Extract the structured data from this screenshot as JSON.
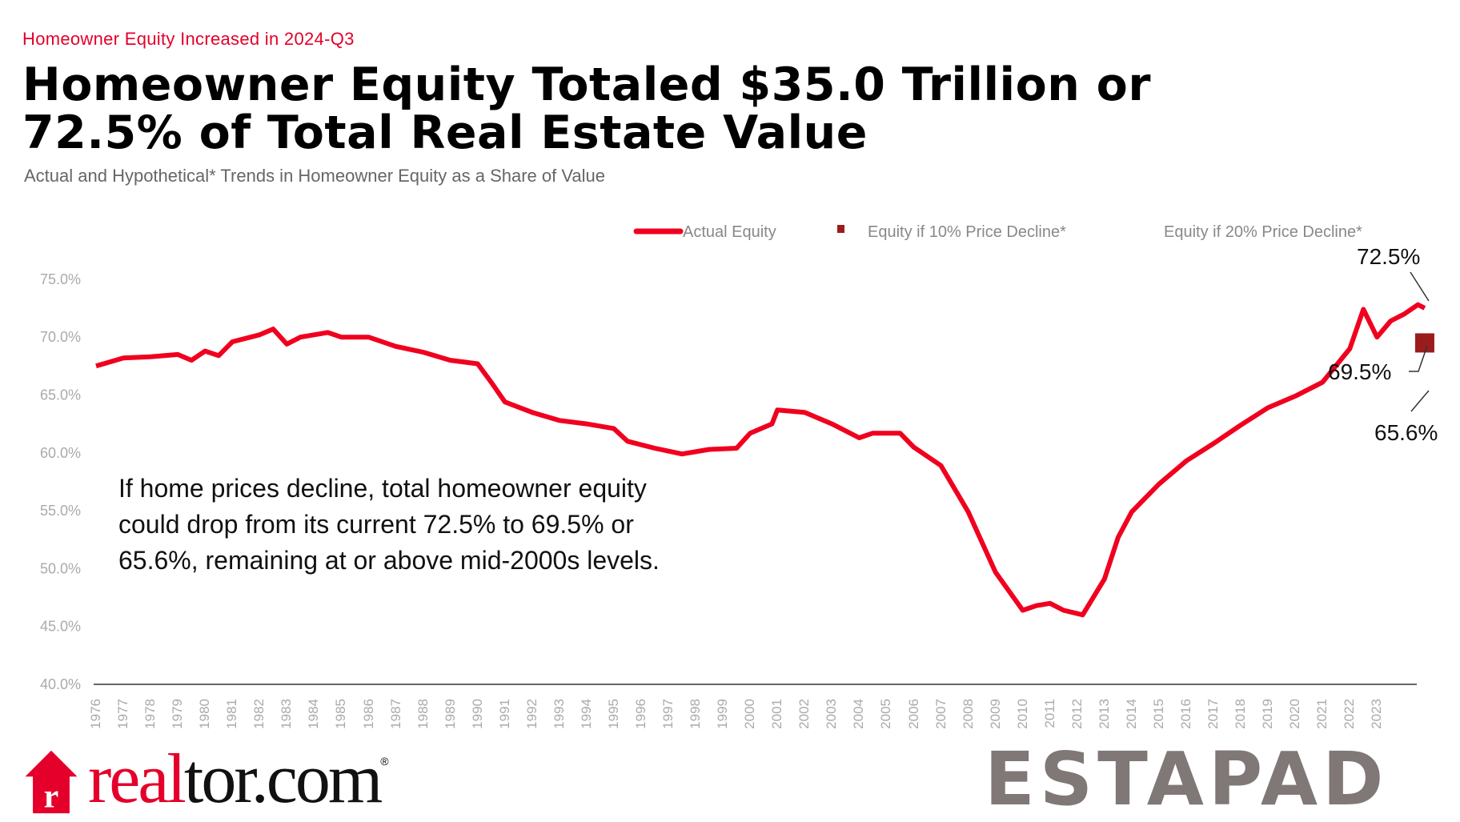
{
  "header": {
    "kicker": "Homeowner Equity Increased in 2024-Q3",
    "title_line1": "Homeowner Equity Totaled $35.0 Trillion or",
    "title_line2": "72.5% of Total Real Estate Value",
    "subtitle": "Actual and Hypothetical* Trends in Homeowner Equity as a Share of Value"
  },
  "note": "If home prices decline, total homeowner equity could drop from its current 72.5% to 69.5% or 65.6%, remaining at or above mid-2000s levels.",
  "logo": {
    "part1": "real",
    "part2": "tor.com",
    "reg": "®"
  },
  "watermark": "ESTAPAD",
  "colors": {
    "actual": "#f0001e",
    "decline10": "#9b1c1c",
    "axis": "#666666"
  },
  "chart_data": {
    "type": "line",
    "title": "Homeowner Equity Totaled $35.0 Trillion or 72.5% of Total Real Estate Value",
    "ylabel": "",
    "xlabel": "",
    "ylim": [
      40,
      75
    ],
    "yticks": [
      "40.0%",
      "45.0%",
      "50.0%",
      "55.0%",
      "60.0%",
      "65.0%",
      "70.0%",
      "75.0%"
    ],
    "ytick_values": [
      40,
      45,
      50,
      55,
      60,
      65,
      70,
      75
    ],
    "xticks": [
      "1976",
      "1977",
      "1978",
      "1979",
      "1980",
      "1981",
      "1982",
      "1983",
      "1984",
      "1985",
      "1986",
      "1987",
      "1988",
      "1989",
      "1990",
      "1991",
      "1992",
      "1993",
      "1994",
      "1995",
      "1996",
      "1997",
      "1998",
      "1999",
      "2000",
      "2001",
      "2002",
      "2003",
      "2004",
      "2005",
      "2006",
      "2007",
      "2008",
      "2009",
      "2010",
      "2011",
      "2012",
      "2013",
      "2014",
      "2015",
      "2016",
      "2017",
      "2018",
      "2019",
      "2020",
      "2021",
      "2022",
      "2023"
    ],
    "legend": [
      "Actual Equity",
      "Equity if 10% Price Decline*",
      "Equity if 20% Price Decline*"
    ],
    "legend_position": "top-right",
    "series": [
      {
        "name": "Actual Equity",
        "x": [
          1976,
          1977,
          1978,
          1979,
          1979.5,
          1980,
          1980.5,
          1981,
          1982,
          1982.5,
          1983,
          1983.5,
          1984.5,
          1985,
          1986,
          1987,
          1988,
          1989,
          1990,
          1990.5,
          1991,
          1992,
          1993,
          1994,
          1995,
          1995.5,
          1996.5,
          1997.5,
          1998.5,
          1999.5,
          2000,
          2000.8,
          2001,
          2002,
          2003,
          2004,
          2004.5,
          2005.5,
          2006,
          2007,
          2008,
          2009,
          2010,
          2010.5,
          2011,
          2011.5,
          2012.2,
          2013,
          2013.5,
          2014,
          2015,
          2016,
          2017,
          2018,
          2019,
          2020,
          2021,
          2022,
          2022.5,
          2023,
          2023.5,
          2024,
          2024.5,
          2024.75
        ],
        "y": [
          67.5,
          68.2,
          68.3,
          68.5,
          68.0,
          68.8,
          68.4,
          69.6,
          70.2,
          70.7,
          69.4,
          70.0,
          70.4,
          70.0,
          70.0,
          69.2,
          68.7,
          68.0,
          67.7,
          66.1,
          64.4,
          63.5,
          62.8,
          62.5,
          62.1,
          61.0,
          60.4,
          59.9,
          60.3,
          60.4,
          61.7,
          62.5,
          63.7,
          63.5,
          62.5,
          61.3,
          61.7,
          61.7,
          60.5,
          58.9,
          54.9,
          49.7,
          46.4,
          46.8,
          47.0,
          46.4,
          46.0,
          49.1,
          52.7,
          54.9,
          57.3,
          59.3,
          60.8,
          62.4,
          63.9,
          64.9,
          66.1,
          69.0,
          72.4,
          70.0,
          71.4,
          72.0,
          72.8,
          72.5
        ]
      },
      {
        "name": "Equity if 10% Price Decline*",
        "x": [
          2024.75
        ],
        "y": [
          69.5
        ]
      },
      {
        "name": "Equity if 20% Price Decline*",
        "x": [
          2024.75
        ],
        "y": [
          65.6
        ]
      }
    ],
    "annotations": [
      "72.5%",
      "69.5%",
      "65.6%"
    ]
  }
}
